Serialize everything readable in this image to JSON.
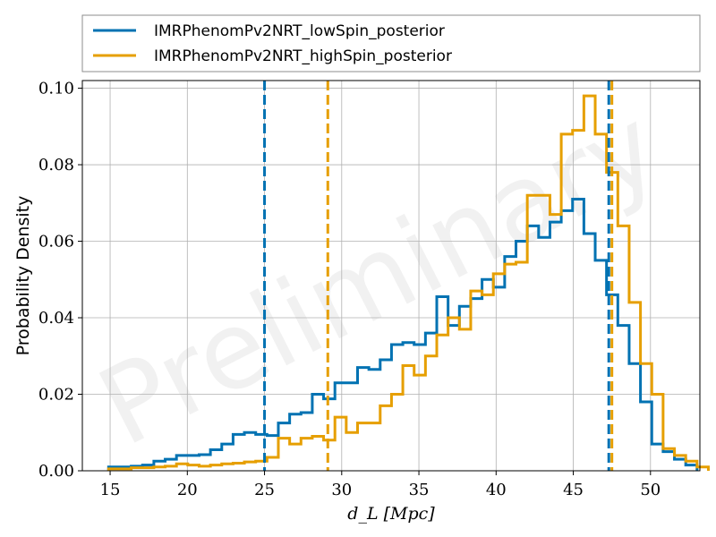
{
  "chart_data": {
    "type": "histogram",
    "xlabel": "d_L [Mpc]",
    "ylabel": "Probability Density",
    "xlim": [
      13.2,
      53.2
    ],
    "ylim": [
      0,
      0.102
    ],
    "x_ticks": [
      15,
      20,
      25,
      30,
      35,
      40,
      45,
      50
    ],
    "y_ticks": [
      0.0,
      0.02,
      0.04,
      0.06,
      0.08,
      0.1
    ],
    "y_tick_labels": [
      "0.00",
      "0.02",
      "0.04",
      "0.06",
      "0.08",
      "0.10"
    ],
    "grid": true,
    "legend_position": "top (above plot)",
    "watermark": "Preliminary",
    "series": [
      {
        "name": "IMRPhenomPv2NRT_lowSpin_posterior",
        "color": "#0072B2",
        "bin_start": 14.9,
        "bin_width": 0.733,
        "densities": [
          0.001,
          0.001,
          0.0012,
          0.0015,
          0.0025,
          0.003,
          0.004,
          0.004,
          0.0042,
          0.0055,
          0.007,
          0.0095,
          0.01,
          0.0095,
          0.0092,
          0.0125,
          0.0148,
          0.0152,
          0.02,
          0.0188,
          0.023,
          0.023,
          0.027,
          0.0265,
          0.029,
          0.033,
          0.0335,
          0.033,
          0.036,
          0.0455,
          0.038,
          0.043,
          0.045,
          0.05,
          0.048,
          0.056,
          0.06,
          0.064,
          0.061,
          0.065,
          0.068,
          0.071,
          0.062,
          0.055,
          0.046,
          0.038,
          0.028,
          0.018,
          0.007,
          0.005,
          0.003,
          0.0015
        ],
        "interval_lines": [
          25.0,
          47.3
        ]
      },
      {
        "name": "IMRPhenomPv2NRT_highSpin_posterior",
        "color": "#E69F00",
        "bin_start": 14.9,
        "bin_width": 0.733,
        "densities": [
          0.0005,
          0.0005,
          0.0008,
          0.0008,
          0.001,
          0.0012,
          0.0018,
          0.0015,
          0.0012,
          0.0015,
          0.0018,
          0.002,
          0.0023,
          0.0025,
          0.0035,
          0.0085,
          0.007,
          0.0085,
          0.009,
          0.008,
          0.014,
          0.01,
          0.0125,
          0.0125,
          0.017,
          0.02,
          0.0275,
          0.025,
          0.03,
          0.0355,
          0.04,
          0.037,
          0.047,
          0.046,
          0.0515,
          0.054,
          0.0545,
          0.072,
          0.072,
          0.067,
          0.088,
          0.089,
          0.098,
          0.088,
          0.078,
          0.064,
          0.044,
          0.028,
          0.02,
          0.0058,
          0.004,
          0.0025,
          0.001
        ],
        "interval_lines": [
          29.1,
          47.5
        ]
      }
    ]
  }
}
